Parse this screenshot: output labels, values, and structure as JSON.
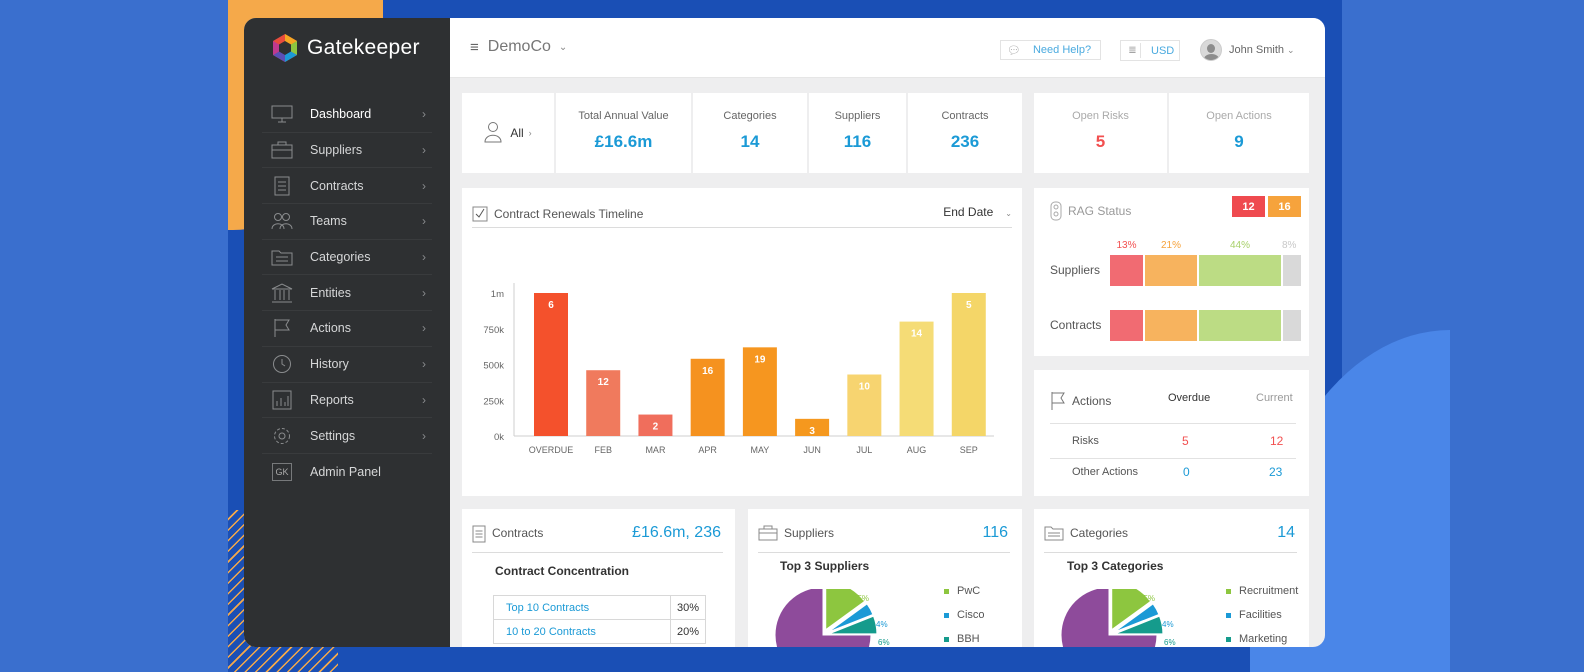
{
  "brand": {
    "name": "Gatekeeper"
  },
  "sidebar": {
    "items": [
      {
        "label": "Dashboard",
        "icon": "monitor-icon"
      },
      {
        "label": "Suppliers",
        "icon": "briefcase-icon"
      },
      {
        "label": "Contracts",
        "icon": "document-icon"
      },
      {
        "label": "Teams",
        "icon": "people-icon"
      },
      {
        "label": "Categories",
        "icon": "folder-icon"
      },
      {
        "label": "Entities",
        "icon": "building-icon"
      },
      {
        "label": "Actions",
        "icon": "flag-icon"
      },
      {
        "label": "History",
        "icon": "clock-icon"
      },
      {
        "label": "Reports",
        "icon": "report-icon"
      },
      {
        "label": "Settings",
        "icon": "gear-icon"
      }
    ],
    "admin": {
      "label": "Admin Panel",
      "badge": "GK"
    }
  },
  "topbar": {
    "company": "DemoCo",
    "help": "Need Help?",
    "currency": "USD",
    "user": "John Smith"
  },
  "stats": {
    "filter": "All",
    "total_annual_value": {
      "label": "Total Annual Value",
      "value": "£16.6m"
    },
    "categories": {
      "label": "Categories",
      "value": "14"
    },
    "suppliers": {
      "label": "Suppliers",
      "value": "116"
    },
    "contracts": {
      "label": "Contracts",
      "value": "236"
    },
    "open_risks": {
      "label": "Open Risks",
      "value": "5"
    },
    "open_actions": {
      "label": "Open Actions",
      "value": "9"
    }
  },
  "timeline": {
    "title": "Contract Renewals Timeline",
    "sort": "End Date"
  },
  "chart_data": {
    "type": "bar",
    "categories": [
      "OVERDUE",
      "FEB",
      "MAR",
      "APR",
      "MAY",
      "JUN",
      "JUL",
      "AUG",
      "SEP"
    ],
    "values": [
      1000000,
      460000,
      150000,
      540000,
      620000,
      120000,
      430000,
      800000,
      1000000
    ],
    "labels": [
      "6",
      "12",
      "2",
      "16",
      "19",
      "3",
      "10",
      "14",
      "5"
    ],
    "colors": [
      "#f4512c",
      "#f07a5d",
      "#f06e5c",
      "#f5921f",
      "#f6961f",
      "#f5981e",
      "#f7d470",
      "#f5dc76",
      "#f4d668"
    ],
    "yticks": [
      "0k",
      "250k",
      "500k",
      "750k",
      "1m"
    ],
    "ylim": [
      0,
      1000000
    ]
  },
  "rag": {
    "title": "RAG Status",
    "badges": [
      {
        "value": "12",
        "color": "#ef4a4f"
      },
      {
        "value": "16",
        "color": "#f6a33c"
      }
    ],
    "percents": [
      "13%",
      "21%",
      "44%",
      "8%"
    ],
    "rows": [
      "Suppliers",
      "Contracts"
    ],
    "colors": [
      "#f16b72",
      "#f7b35e",
      "#bcdc84",
      "#d9d9d9"
    ]
  },
  "actions": {
    "title": "Actions",
    "overdue": "Overdue",
    "current": "Current",
    "rows": [
      {
        "label": "Risks",
        "overdue": "5",
        "current": "12"
      },
      {
        "label": "Other Actions",
        "overdue": "0",
        "current": "23"
      }
    ]
  },
  "contracts_card": {
    "title": "Contracts",
    "summary": "£16.6m, 236",
    "subtitle": "Contract Concentration",
    "rows": [
      {
        "label": "Top 10 Contracts",
        "pct": "30%"
      },
      {
        "label": "10 to 20 Contracts",
        "pct": "20%"
      }
    ]
  },
  "suppliers_card": {
    "title": "Suppliers",
    "count": "116",
    "subtitle": "Top 3 Suppliers",
    "slices": [
      "15%",
      "4%",
      "6%"
    ],
    "legend": [
      {
        "label": "PwC",
        "color": "#8dc63f"
      },
      {
        "label": "Cisco",
        "color": "#1b9ad6"
      },
      {
        "label": "BBH",
        "color": "#159b8c"
      }
    ]
  },
  "categories_card": {
    "title": "Categories",
    "count": "14",
    "subtitle": "Top 3 Categories",
    "slices": [
      "15%",
      "4%",
      "6%"
    ],
    "legend": [
      {
        "label": "Recruitment",
        "color": "#8dc63f"
      },
      {
        "label": "Facilities",
        "color": "#1b9ad6"
      },
      {
        "label": "Marketing",
        "color": "#159b8c"
      }
    ]
  }
}
